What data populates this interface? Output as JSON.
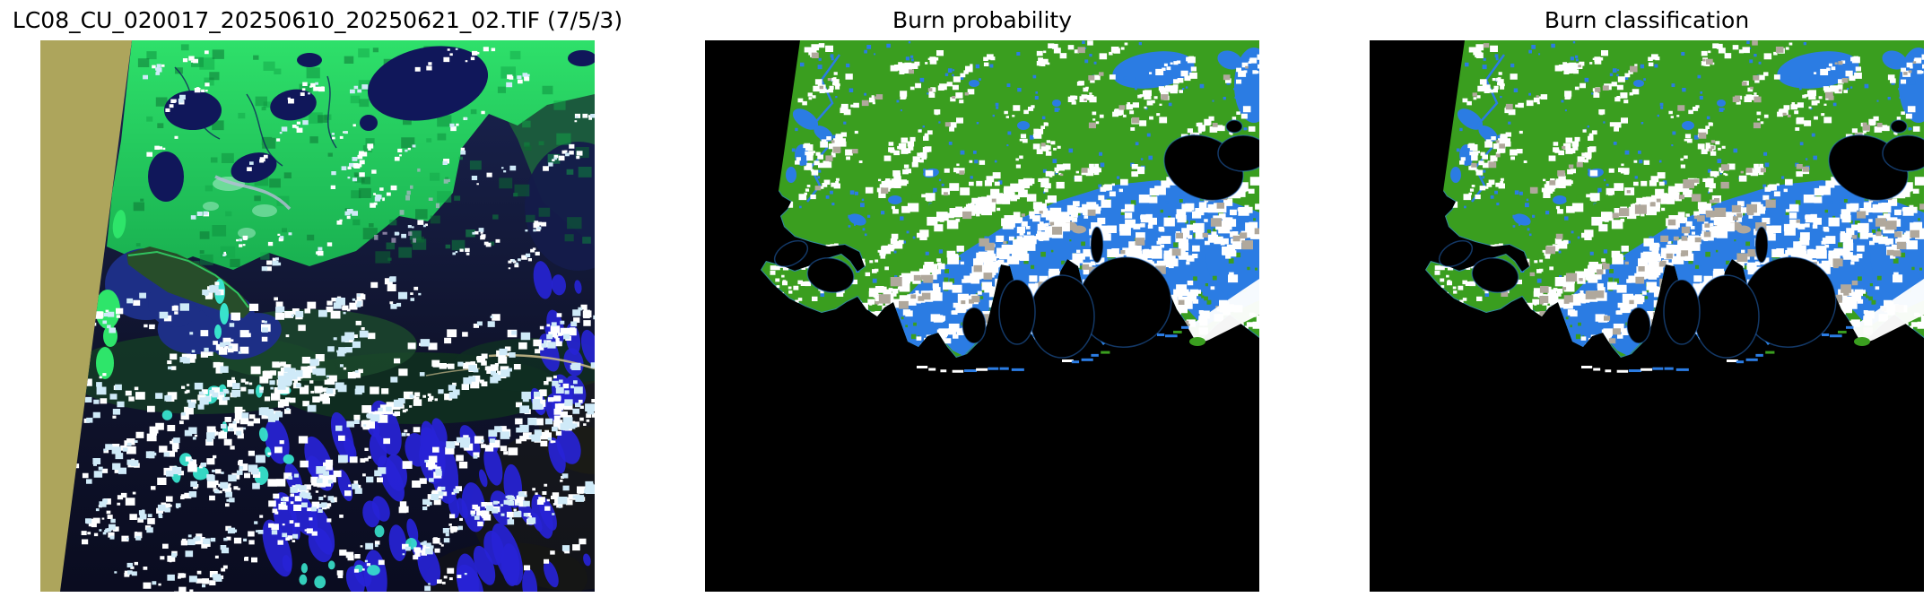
{
  "figure": {
    "background": "#ffffff",
    "panels": [
      {
        "title": "LC08_CU_020017_20250610_20250621_02.TIF (7/5/3)",
        "type": "false-color satellite composite",
        "palette": {
          "fill_khaki": "#ada55c",
          "vegetation_green": "#2ee06a",
          "vegetation_mid": "#19b050",
          "vegetation_deep": "#0c8c3b",
          "water_navy": "#10175a",
          "bay_blue": "#1d2f86",
          "sea_dark": "#0a0d22",
          "marsh_dark_green": "#274d2a",
          "cloud_white": "#ffffff",
          "cloud_pale": "#cfeaf8",
          "shadow_blue": "#2723d6",
          "marsh_cyan": "#38e3cc",
          "mint_pale": "#aef0cf",
          "urban_lavender": "#c3b4d6",
          "sand_tan": "#c8b98a"
        }
      },
      {
        "title": "Burn probability",
        "type": "classified raster map",
        "palette": {
          "background_black": "#000000",
          "land_green": "#3a9e1f",
          "burn_blue": "#2b7ce3",
          "cloud_white": "#ffffff",
          "shadow_gray": "#b0a89c"
        }
      },
      {
        "title": "Burn classification",
        "type": "classified raster map",
        "palette": {
          "background_black": "#000000",
          "land_green": "#3a9e1f",
          "burn_blue": "#2b7ce3",
          "cloud_white": "#ffffff",
          "shadow_gray": "#b0a89c"
        }
      }
    ]
  }
}
